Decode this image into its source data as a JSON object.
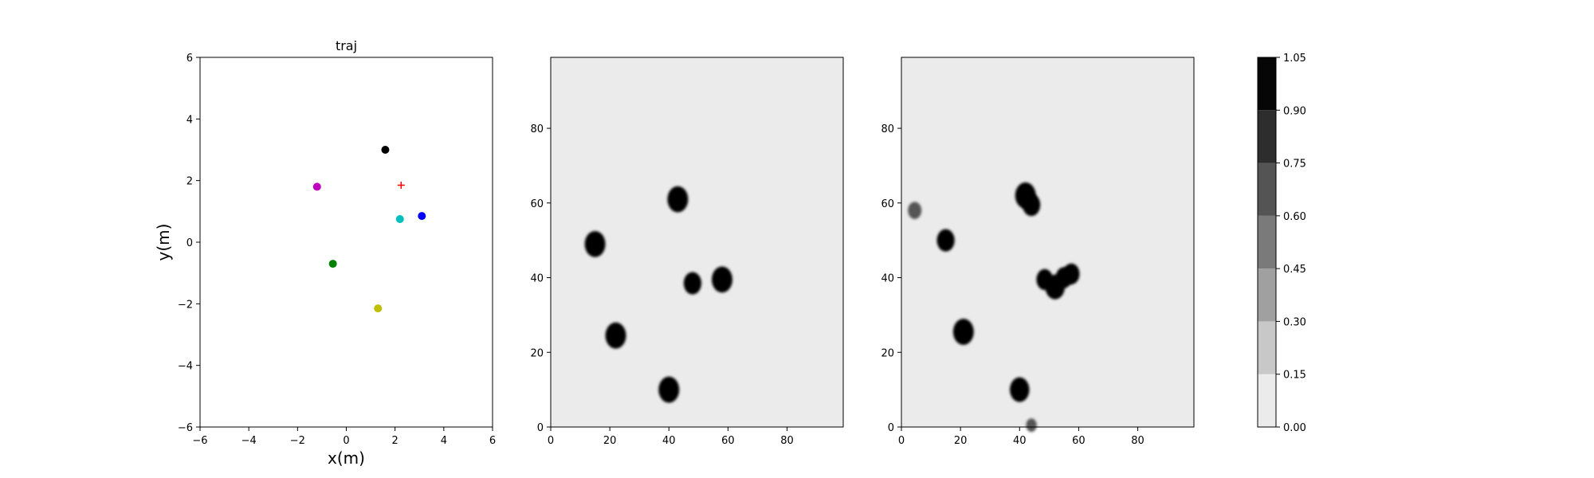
{
  "colors": {
    "map_background": "#ebebeb",
    "obstacle": "#080808",
    "target_marker": "#ff0000",
    "colorbar_levels": [
      "#ebebeb",
      "#c8c8c8",
      "#a0a0a0",
      "#7a7a7a",
      "#545454",
      "#2d2d2d",
      "#060606"
    ]
  },
  "chart_data": [
    {
      "type": "scatter",
      "title": "traj",
      "xlabel": "x(m)",
      "ylabel": "y(m)",
      "xlim": [
        -6,
        6
      ],
      "ylim": [
        -6,
        6
      ],
      "xticks": [
        "−6",
        "−4",
        "−2",
        "0",
        "2",
        "4",
        "6"
      ],
      "yticks": [
        "−6",
        "−4",
        "−2",
        "0",
        "2",
        "4",
        "6"
      ],
      "grid": false,
      "points": [
        {
          "x": 1.6,
          "y": 3.0,
          "color": "#000000",
          "marker": "circle"
        },
        {
          "x": -1.2,
          "y": 1.8,
          "color": "#bf00bf",
          "marker": "circle"
        },
        {
          "x": 2.2,
          "y": 0.75,
          "color": "#00bfbf",
          "marker": "circle"
        },
        {
          "x": 3.1,
          "y": 0.85,
          "color": "#0000ff",
          "marker": "circle"
        },
        {
          "x": -0.55,
          "y": -0.7,
          "color": "#008000",
          "marker": "circle"
        },
        {
          "x": 1.3,
          "y": -2.15,
          "color": "#bfbf00",
          "marker": "circle"
        },
        {
          "x": 2.25,
          "y": 1.85,
          "color": "#ff0000",
          "marker": "plus"
        }
      ]
    },
    {
      "type": "heatmap",
      "xlim": [
        0,
        99
      ],
      "ylim": [
        0,
        99
      ],
      "xticks": [
        "0",
        "20",
        "40",
        "60",
        "80"
      ],
      "yticks": [
        "0",
        "20",
        "40",
        "60",
        "80"
      ],
      "obstacles": [
        {
          "x": 43,
          "y": 61,
          "r": 3.5,
          "value": 1.0
        },
        {
          "x": 15,
          "y": 49,
          "r": 3.5,
          "value": 1.0
        },
        {
          "x": 48,
          "y": 38.5,
          "r": 3.0,
          "value": 1.0
        },
        {
          "x": 58,
          "y": 39.5,
          "r": 3.5,
          "value": 1.0
        },
        {
          "x": 22,
          "y": 24.5,
          "r": 3.5,
          "value": 1.0
        },
        {
          "x": 40,
          "y": 10,
          "r": 3.5,
          "value": 1.0
        }
      ]
    },
    {
      "type": "heatmap",
      "xlim": [
        0,
        99
      ],
      "ylim": [
        0,
        99
      ],
      "xticks": [
        "0",
        "20",
        "40",
        "60",
        "80"
      ],
      "yticks": [
        "0",
        "20",
        "40",
        "60",
        "80"
      ],
      "obstacles": [
        {
          "x": 4.5,
          "y": 58,
          "r": 2.3,
          "value": 0.65
        },
        {
          "x": 15,
          "y": 50,
          "r": 3.0,
          "value": 1.0
        },
        {
          "x": 42,
          "y": 62,
          "r": 3.5,
          "value": 1.0
        },
        {
          "x": 44,
          "y": 59.5,
          "r": 3.0,
          "value": 1.0
        },
        {
          "x": 48.5,
          "y": 39.5,
          "r": 2.8,
          "value": 1.0
        },
        {
          "x": 52,
          "y": 37.5,
          "r": 3.3,
          "value": 1.0
        },
        {
          "x": 55,
          "y": 40,
          "r": 2.8,
          "value": 1.0
        },
        {
          "x": 57.5,
          "y": 41,
          "r": 2.8,
          "value": 1.0
        },
        {
          "x": 21,
          "y": 25.5,
          "r": 3.5,
          "value": 1.0
        },
        {
          "x": 40,
          "y": 10,
          "r": 3.3,
          "value": 1.0
        },
        {
          "x": 44,
          "y": 0.5,
          "r": 1.8,
          "value": 0.75
        }
      ]
    },
    {
      "type": "colorbar",
      "levels": [
        0.0,
        0.15,
        0.3,
        0.45,
        0.6,
        0.75,
        0.9,
        1.05
      ],
      "tick_labels": [
        "0.00",
        "0.15",
        "0.30",
        "0.45",
        "0.60",
        "0.75",
        "0.90",
        "1.05"
      ]
    }
  ]
}
